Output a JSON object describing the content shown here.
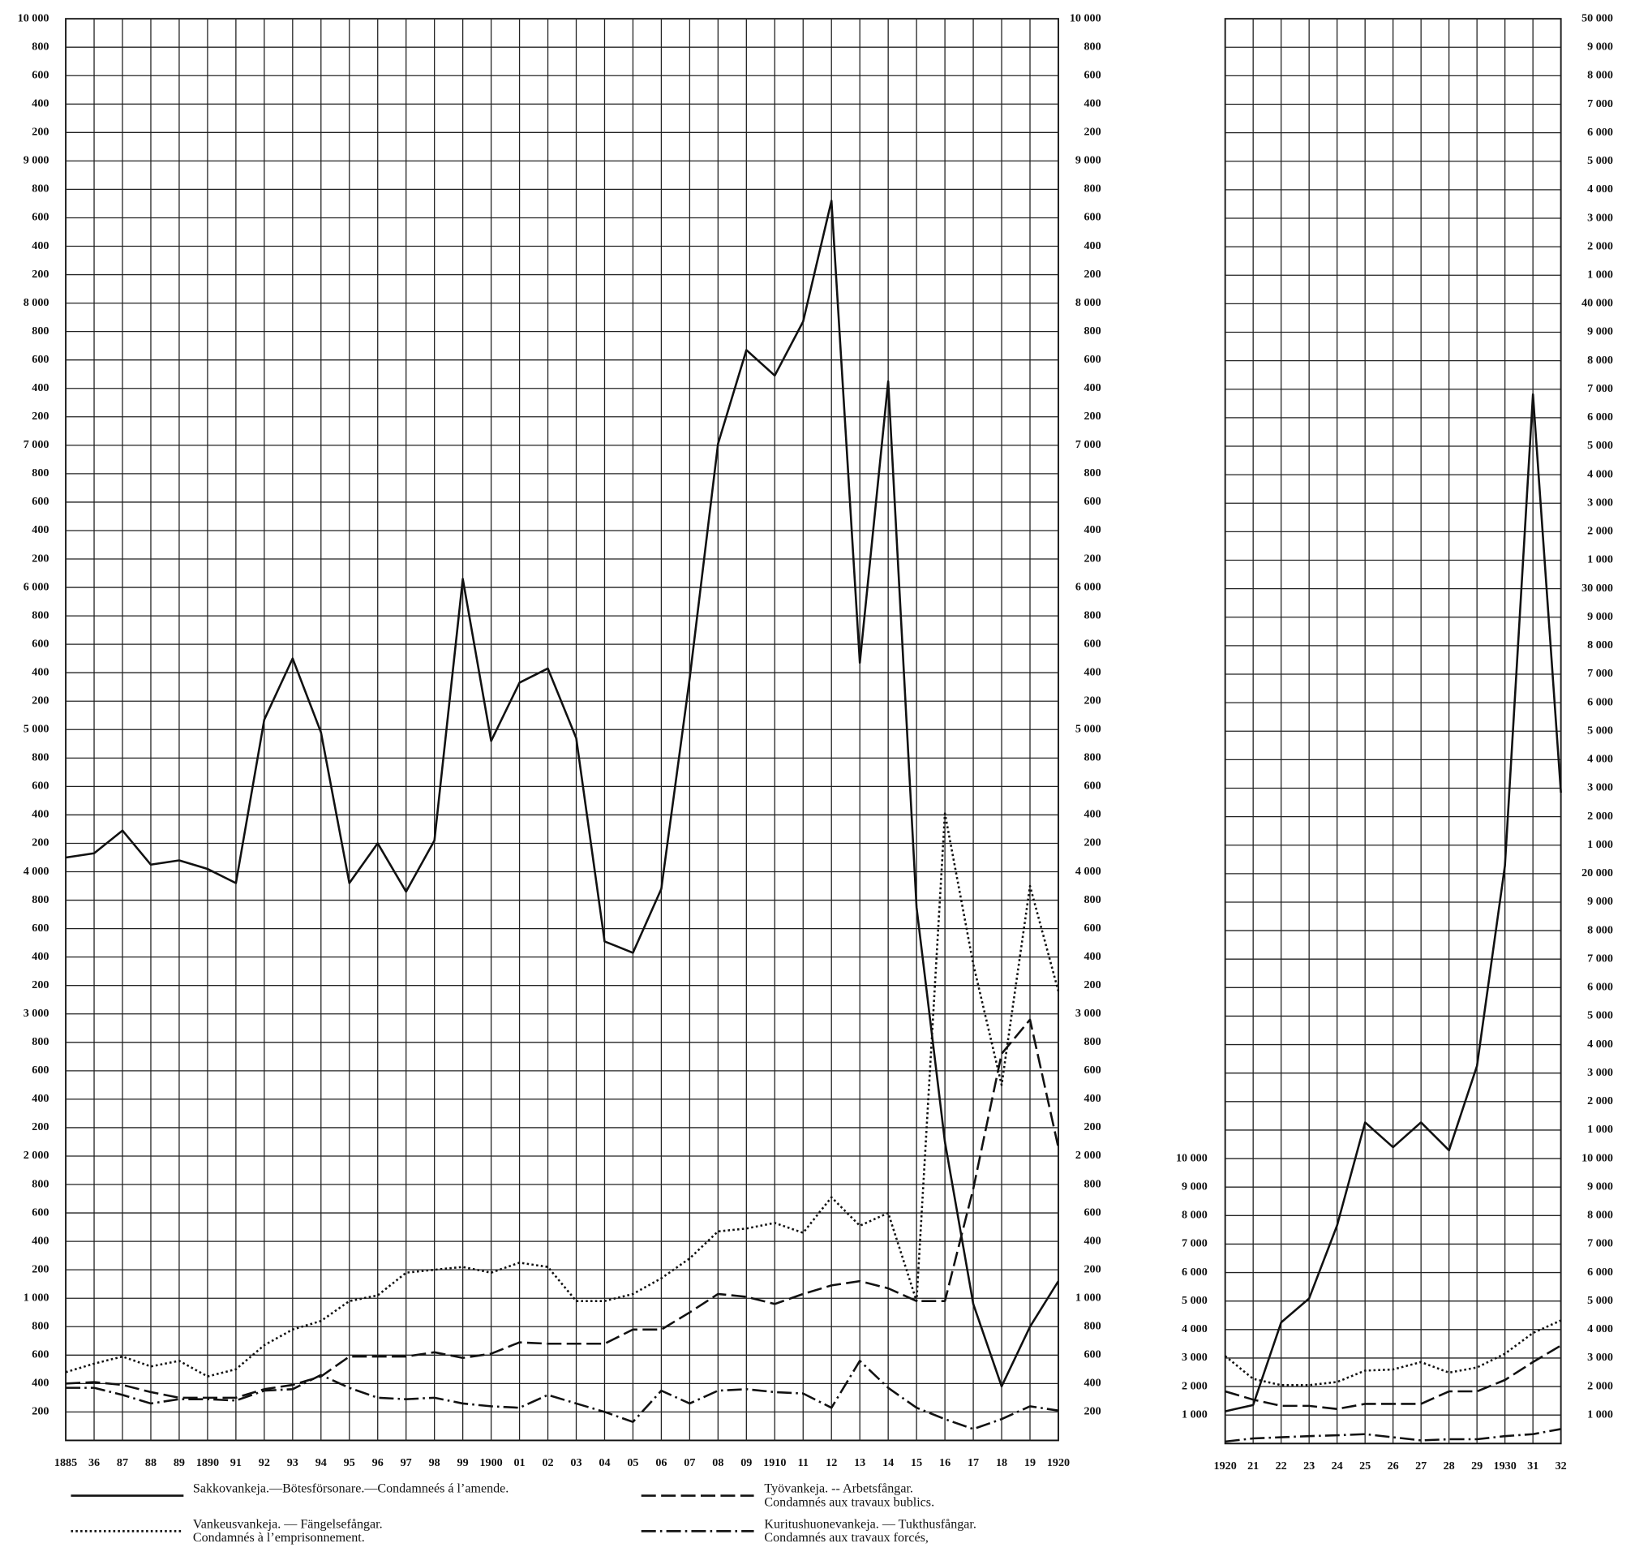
{
  "chart_data": [
    {
      "type": "line",
      "categories": [
        "1885",
        "36",
        "87",
        "88",
        "89",
        "1890",
        "91",
        "92",
        "93",
        "94",
        "95",
        "96",
        "97",
        "98",
        "99",
        "1900",
        "01",
        "02",
        "03",
        "04",
        "05",
        "06",
        "07",
        "08",
        "09",
        "1910",
        "11",
        "12",
        "13",
        "14",
        "15",
        "16",
        "17",
        "18",
        "19",
        "1920"
      ],
      "ylim": [
        0,
        10000
      ],
      "yticks": [
        200,
        400,
        600,
        800,
        {
          "value": 1000,
          "label": "1 000"
        },
        {
          "value": 1200,
          "label": "200"
        },
        {
          "value": 1400,
          "label": "400"
        },
        {
          "value": 1600,
          "label": "600"
        },
        {
          "value": 1800,
          "label": "800"
        },
        {
          "value": 2000,
          "label": "2 000"
        },
        {
          "value": 2200,
          "label": "200"
        },
        {
          "value": 2400,
          "label": "400"
        },
        {
          "value": 2600,
          "label": "600"
        },
        {
          "value": 2800,
          "label": "800"
        },
        {
          "value": 3000,
          "label": "3 000"
        },
        {
          "value": 3200,
          "label": "200"
        },
        {
          "value": 3400,
          "label": "400"
        },
        {
          "value": 3600,
          "label": "600"
        },
        {
          "value": 3800,
          "label": "800"
        },
        {
          "value": 4000,
          "label": "4 000"
        },
        {
          "value": 4200,
          "label": "200"
        },
        {
          "value": 4400,
          "label": "400"
        },
        {
          "value": 4600,
          "label": "600"
        },
        {
          "value": 4800,
          "label": "800"
        },
        {
          "value": 5000,
          "label": "5 000"
        },
        {
          "value": 5200,
          "label": "200"
        },
        {
          "value": 5400,
          "label": "400"
        },
        {
          "value": 5600,
          "label": "600"
        },
        {
          "value": 5800,
          "label": "800"
        },
        {
          "value": 6000,
          "label": "6 000"
        },
        {
          "value": 6200,
          "label": "200"
        },
        {
          "value": 6400,
          "label": "400"
        },
        {
          "value": 6600,
          "label": "600"
        },
        {
          "value": 6800,
          "label": "800"
        },
        {
          "value": 7000,
          "label": "7 000"
        },
        {
          "value": 7200,
          "label": "200"
        },
        {
          "value": 7400,
          "label": "400"
        },
        {
          "value": 7600,
          "label": "600"
        },
        {
          "value": 7800,
          "label": "800"
        },
        {
          "value": 8000,
          "label": "8 000"
        },
        {
          "value": 8200,
          "label": "200"
        },
        {
          "value": 8400,
          "label": "400"
        },
        {
          "value": 8600,
          "label": "600"
        },
        {
          "value": 8800,
          "label": "800"
        },
        {
          "value": 9000,
          "label": "9 000"
        },
        {
          "value": 9200,
          "label": "200"
        },
        {
          "value": 9400,
          "label": "400"
        },
        {
          "value": 9600,
          "label": "600"
        },
        {
          "value": 9800,
          "label": "800"
        },
        {
          "value": 10000,
          "label": "10 000"
        }
      ],
      "grid": true,
      "series": [
        {
          "name": [
            "Sakkovankeja.—Bötesförsonare.—Condamneés á l’amende."
          ],
          "color": "#111111",
          "dash": "solid",
          "values": [
            4100,
            4130,
            4290,
            4050,
            4080,
            4020,
            3920,
            5070,
            5500,
            4980,
            3920,
            4200,
            3860,
            4220,
            6060,
            4920,
            5330,
            5430,
            4940,
            3510,
            3430,
            3880,
            5360,
            7010,
            7670,
            7490,
            7870,
            8720,
            5470,
            7450,
            3750,
            2100,
            960,
            380,
            800,
            1120
          ]
        },
        {
          "name": [
            "Työvankeja. -- Arbetsfångar.",
            "Condamnés aux travaux bublics."
          ],
          "color": "#111111",
          "dash": "dashed",
          "values": [
            400,
            410,
            390,
            340,
            300,
            300,
            300,
            360,
            390,
            450,
            590,
            590,
            590,
            620,
            580,
            610,
            690,
            680,
            680,
            680,
            780,
            780,
            900,
            1030,
            1010,
            960,
            1030,
            1090,
            1120,
            1070,
            980,
            980,
            1770,
            2720,
            2960,
            2060
          ]
        },
        {
          "name": [
            "Vankeusvankeja. — Fängelsefångar.",
            "Condamnés à l’emprisonnement."
          ],
          "color": "#111111",
          "dash": "dotted",
          "values": [
            480,
            540,
            590,
            520,
            560,
            450,
            500,
            670,
            780,
            840,
            980,
            1020,
            1180,
            1200,
            1220,
            1180,
            1250,
            1220,
            980,
            980,
            1030,
            1140,
            1280,
            1470,
            1490,
            1530,
            1460,
            1710,
            1510,
            1600,
            980,
            4410,
            3350,
            2500,
            3900,
            3160
          ]
        },
        {
          "name": [
            "Kuritushuonevankeja. — Tukthusfångar.",
            "Condamnés aux travaux forcés,"
          ],
          "color": "#111111",
          "dash": "dashdot",
          "values": [
            370,
            370,
            320,
            260,
            290,
            290,
            280,
            350,
            360,
            460,
            370,
            300,
            290,
            300,
            260,
            240,
            230,
            320,
            260,
            200,
            130,
            350,
            260,
            350,
            360,
            340,
            330,
            230,
            560,
            370,
            230,
            150,
            80,
            150,
            240,
            210
          ]
        }
      ]
    },
    {
      "type": "line",
      "categories": [
        "1920",
        "21",
        "22",
        "23",
        "24",
        "25",
        "26",
        "27",
        "28",
        "29",
        "1930",
        "31",
        "32"
      ],
      "ylim": [
        0,
        50000
      ],
      "yticks_left": [
        {
          "value": 1000,
          "label": "1 000"
        },
        {
          "value": 2000,
          "label": "2 000"
        },
        {
          "value": 3000,
          "label": "3 000"
        },
        {
          "value": 4000,
          "label": "4 000"
        },
        {
          "value": 5000,
          "label": "5 000"
        },
        {
          "value": 6000,
          "label": "6 000"
        },
        {
          "value": 7000,
          "label": "7 000"
        },
        {
          "value": 8000,
          "label": "8 000"
        },
        {
          "value": 9000,
          "label": "9 000"
        },
        {
          "value": 10000,
          "label": "10 000"
        }
      ],
      "yticks": [
        {
          "value": 1000,
          "label": "1 000"
        },
        {
          "value": 2000,
          "label": "2 000"
        },
        {
          "value": 3000,
          "label": "3 000"
        },
        {
          "value": 4000,
          "label": "4 000"
        },
        {
          "value": 5000,
          "label": "5 000"
        },
        {
          "value": 6000,
          "label": "6 000"
        },
        {
          "value": 7000,
          "label": "7 000"
        },
        {
          "value": 8000,
          "label": "8 000"
        },
        {
          "value": 9000,
          "label": "9 000"
        },
        {
          "value": 10000,
          "label": "10 000"
        },
        {
          "value": 11000,
          "label": "1 000"
        },
        {
          "value": 12000,
          "label": "2 000"
        },
        {
          "value": 13000,
          "label": "3 000"
        },
        {
          "value": 14000,
          "label": "4 000"
        },
        {
          "value": 15000,
          "label": "5 000"
        },
        {
          "value": 16000,
          "label": "6 000"
        },
        {
          "value": 17000,
          "label": "7 000"
        },
        {
          "value": 18000,
          "label": "8 000"
        },
        {
          "value": 19000,
          "label": "9 000"
        },
        {
          "value": 20000,
          "label": "20 000"
        },
        {
          "value": 21000,
          "label": "1 000"
        },
        {
          "value": 22000,
          "label": "2 000"
        },
        {
          "value": 23000,
          "label": "3 000"
        },
        {
          "value": 24000,
          "label": "4 000"
        },
        {
          "value": 25000,
          "label": "5 000"
        },
        {
          "value": 26000,
          "label": "6 000"
        },
        {
          "value": 27000,
          "label": "7 000"
        },
        {
          "value": 28000,
          "label": "8 000"
        },
        {
          "value": 29000,
          "label": "9 000"
        },
        {
          "value": 30000,
          "label": "30 000"
        },
        {
          "value": 31000,
          "label": "1 000"
        },
        {
          "value": 32000,
          "label": "2 000"
        },
        {
          "value": 33000,
          "label": "3 000"
        },
        {
          "value": 34000,
          "label": "4 000"
        },
        {
          "value": 35000,
          "label": "5 000"
        },
        {
          "value": 36000,
          "label": "6 000"
        },
        {
          "value": 37000,
          "label": "7 000"
        },
        {
          "value": 38000,
          "label": "8 000"
        },
        {
          "value": 39000,
          "label": "9 000"
        },
        {
          "value": 40000,
          "label": "40 000"
        },
        {
          "value": 41000,
          "label": "1 000"
        },
        {
          "value": 42000,
          "label": "2 000"
        },
        {
          "value": 43000,
          "label": "3 000"
        },
        {
          "value": 44000,
          "label": "4 000"
        },
        {
          "value": 45000,
          "label": "5 000"
        },
        {
          "value": 46000,
          "label": "6 000"
        },
        {
          "value": 47000,
          "label": "7 000"
        },
        {
          "value": 48000,
          "label": "8 000"
        },
        {
          "value": 49000,
          "label": "9 000"
        },
        {
          "value": 50000,
          "label": "50 000"
        }
      ],
      "grid": true,
      "series": [
        {
          "color": "#111111",
          "dash": "solid",
          "values": [
            1130,
            1350,
            4250,
            5090,
            7650,
            11270,
            10400,
            11270,
            10290,
            13250,
            20280,
            36820,
            22840
          ]
        },
        {
          "color": "#111111",
          "dash": "dashed",
          "values": [
            1830,
            1540,
            1320,
            1320,
            1210,
            1390,
            1390,
            1390,
            1830,
            1830,
            2230,
            2860,
            3440
          ]
        },
        {
          "color": "#111111",
          "dash": "dotted",
          "values": [
            3070,
            2270,
            2050,
            2050,
            2160,
            2560,
            2600,
            2860,
            2490,
            2670,
            3150,
            3880,
            4320
          ]
        },
        {
          "color": "#111111",
          "dash": "dashdot",
          "values": [
            70,
            180,
            220,
            260,
            290,
            330,
            220,
            110,
            150,
            150,
            260,
            330,
            510
          ]
        }
      ]
    }
  ]
}
